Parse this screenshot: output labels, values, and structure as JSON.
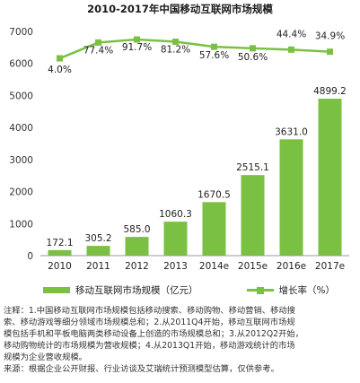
{
  "colors": {
    "bar": "#7ac143",
    "line": "#7ac143",
    "axis": "#999999",
    "text": "#1a1a1a"
  },
  "chart_data": {
    "type": "bar",
    "title": "2010-2017年中国移动互联网市场规模",
    "categories": [
      "2010",
      "2011",
      "2012",
      "2013",
      "2014e",
      "2015e",
      "2016e",
      "2017e"
    ],
    "series": [
      {
        "name": "移动互联网市场规模（亿元）",
        "type": "bar",
        "axis": "left",
        "values": [
          172.1,
          305.2,
          585.0,
          1060.3,
          1670.5,
          2515.1,
          3631.0,
          4899.2
        ],
        "labels": [
          "172.1",
          "305.2",
          "585.0",
          "1060.3",
          "1670.5",
          "2515.1",
          "3631.0",
          "4899.2"
        ]
      },
      {
        "name": "增长率（%）",
        "type": "line",
        "axis": "right",
        "values": [
          4.0,
          77.4,
          91.7,
          81.2,
          57.6,
          50.6,
          44.4,
          34.9
        ],
        "labels": [
          "4.0%",
          "77.4%",
          "91.7%",
          "81.2%",
          "57.6%",
          "50.6%",
          "44.4%",
          "34.9%"
        ]
      }
    ],
    "y_ticks": [
      "0",
      "1000",
      "2000",
      "3000",
      "4000",
      "5000",
      "6000",
      "7000"
    ],
    "ylim": [
      0,
      7000
    ],
    "grid": false,
    "legend": "bottom"
  },
  "notes": {
    "line1": "注释：1.中国移动互联网市场规模包括移动搜索、移动购物、移动营销、移动搜",
    "line2": "索、移动游戏等细分领域市场规模总和；2.从2011Q4开始，移动互联网市场规",
    "line3": "模包括手机和平板电脑两类移动设备上创造的市场规模总和；3.从2012Q2开始，",
    "line4": "移动购物统计的市场规模为营收规模；4.从2013Q1开始，移动游戏统计的市场",
    "line5": "规模为企业营收规模。",
    "line6": "来源：根据企业公开财报、行业访谈及艾瑞统计预测模型估算，仅供参考。"
  }
}
